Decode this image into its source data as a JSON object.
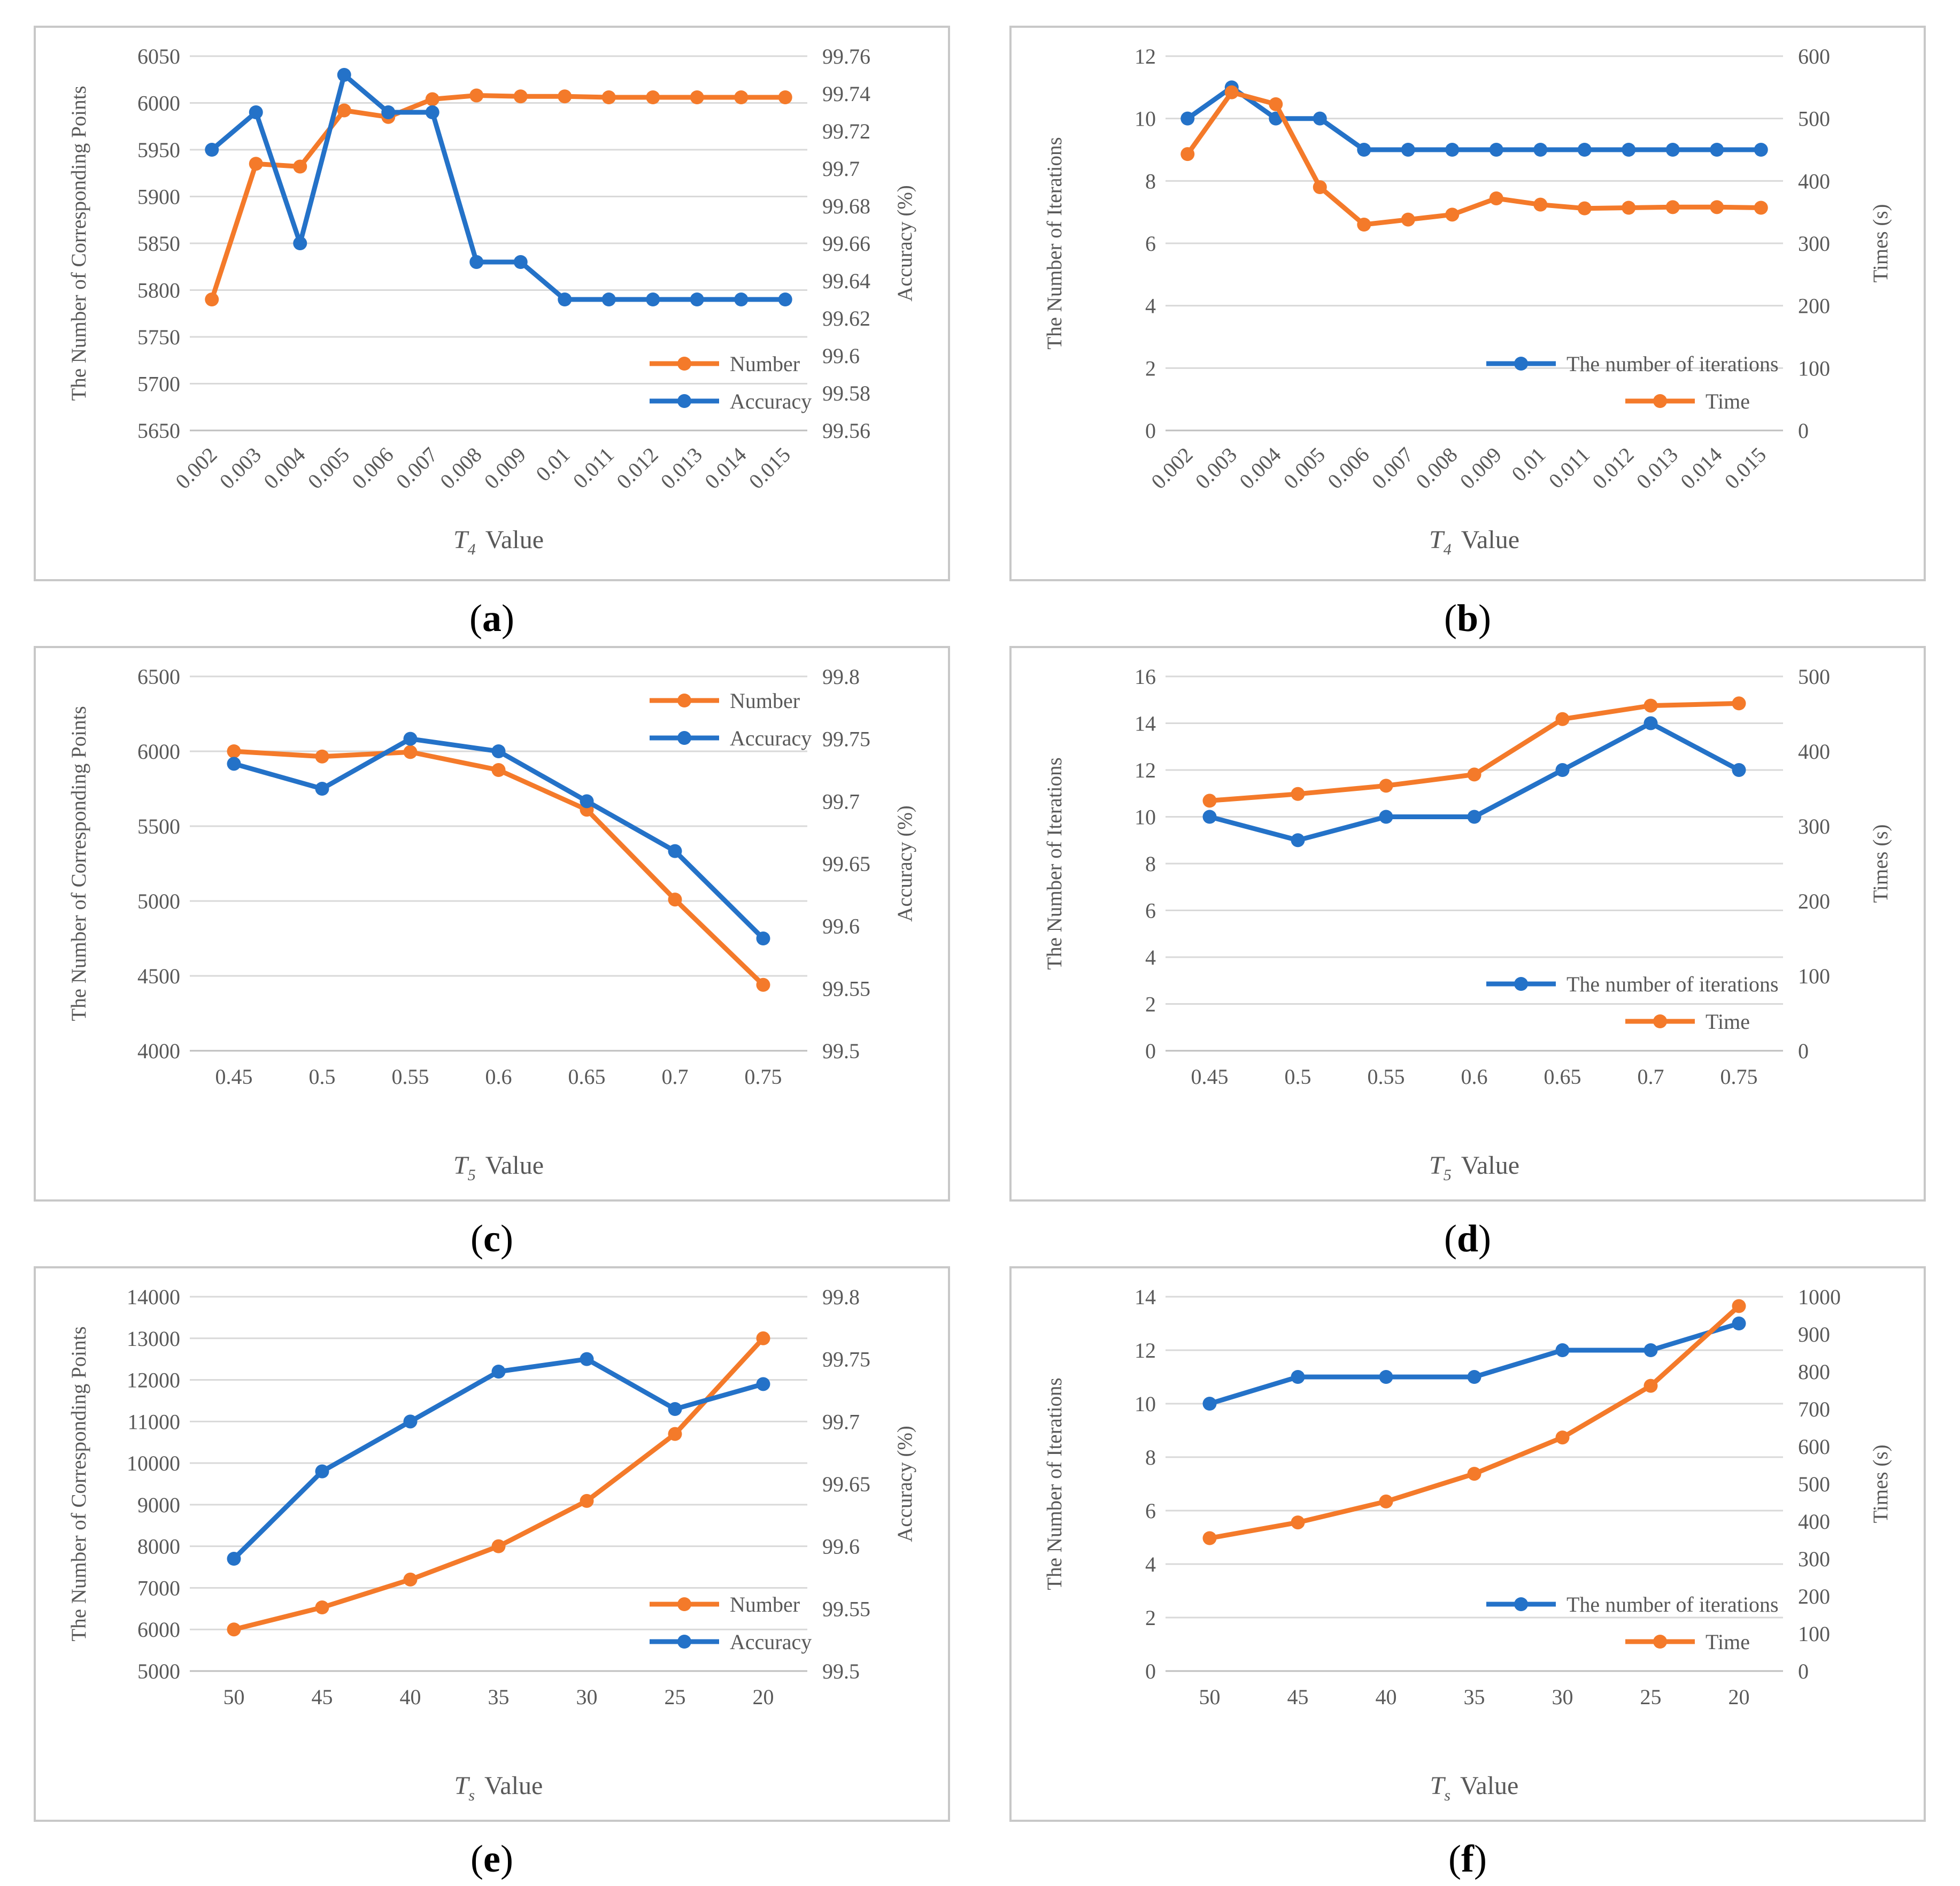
{
  "figure": {
    "panels": [
      {
        "id": "a",
        "caption_open": "(",
        "caption_letter": "a",
        "caption_close": ")"
      },
      {
        "id": "b",
        "caption_open": "(",
        "caption_letter": "b",
        "caption_close": ")"
      },
      {
        "id": "c",
        "caption_open": "(",
        "caption_letter": "c",
        "caption_close": ")"
      },
      {
        "id": "d",
        "caption_open": "(",
        "caption_letter": "d",
        "caption_close": ")"
      },
      {
        "id": "e",
        "caption_open": "(",
        "caption_letter": "e",
        "caption_close": ")"
      },
      {
        "id": "f",
        "caption_open": "(",
        "caption_letter": "f",
        "caption_close": ")"
      }
    ]
  },
  "colors": {
    "blue": "#2472C8",
    "orange": "#F47A2A",
    "grid": "#D9D9D9",
    "frame": "#C8C8C8",
    "text": "#595959"
  },
  "chart_data": [
    {
      "panel": "a",
      "type": "line",
      "categories": [
        "0.002",
        "0.003",
        "0.004",
        "0.005",
        "0.006",
        "0.007",
        "0.008",
        "0.009",
        "0.01",
        "0.011",
        "0.012",
        "0.013",
        "0.014",
        "0.015"
      ],
      "ylabel": "The Number of Corresponding Points",
      "y2label": "Accuracy (%)",
      "xlabel_symbol": "T",
      "xlabel_sub": "4",
      "xlabel_word": "Value",
      "ylim": [
        5650,
        6050
      ],
      "ystep": 50,
      "y2lim": [
        99.56,
        99.76
      ],
      "y2step": 0.02,
      "rotate_ticks": true,
      "legend_position": "bottom-right",
      "series": [
        {
          "name": "Number",
          "axis": "left",
          "color": "orange",
          "values": [
            5790,
            5935,
            5932,
            5992,
            5985,
            6004,
            6008,
            6007,
            6007,
            6006,
            6006,
            6006,
            6006,
            6006
          ]
        },
        {
          "name": "Accuracy",
          "axis": "right",
          "color": "blue",
          "values": [
            99.71,
            99.73,
            99.66,
            99.75,
            99.73,
            99.73,
            99.65,
            99.65,
            99.63,
            99.63,
            99.63,
            99.63,
            99.63,
            99.63
          ]
        }
      ]
    },
    {
      "panel": "b",
      "type": "line",
      "categories": [
        "0.002",
        "0.003",
        "0.004",
        "0.005",
        "0.006",
        "0.007",
        "0.008",
        "0.009",
        "0.01",
        "0.011",
        "0.012",
        "0.013",
        "0.014",
        "0.015"
      ],
      "ylabel": "The Number of Iterations",
      "y2label": "Times (s)",
      "xlabel_symbol": "T",
      "xlabel_sub": "4",
      "xlabel_word": "Value",
      "ylim": [
        0,
        12
      ],
      "ystep": 2,
      "y2lim": [
        0,
        600
      ],
      "y2step": 100,
      "rotate_ticks": true,
      "legend_position": "bottom-right",
      "series": [
        {
          "name": "The number of iterations",
          "axis": "left",
          "color": "blue",
          "values": [
            10,
            11,
            10,
            10,
            9,
            9,
            9,
            9,
            9,
            9,
            9,
            9,
            9,
            9
          ]
        },
        {
          "name": "Time",
          "axis": "right",
          "color": "orange",
          "values": [
            443,
            542,
            523,
            390,
            330,
            338,
            346,
            372,
            362,
            356,
            357,
            358,
            358,
            357
          ]
        }
      ]
    },
    {
      "panel": "c",
      "type": "line",
      "categories": [
        "0.45",
        "0.5",
        "0.55",
        "0.6",
        "0.65",
        "0.7",
        "0.75"
      ],
      "ylabel": "The Number of Corresponding Points",
      "y2label": "Accuracy (%)",
      "xlabel_symbol": "T",
      "xlabel_sub": "5",
      "xlabel_word": "Value",
      "ylim": [
        4000,
        6500
      ],
      "ystep": 500,
      "y2lim": [
        99.5,
        99.8
      ],
      "y2step": 0.05,
      "rotate_ticks": false,
      "legend_position": "top-right",
      "series": [
        {
          "name": "Number",
          "axis": "left",
          "color": "orange",
          "values": [
            6000,
            5965,
            5995,
            5875,
            5610,
            5010,
            4440
          ]
        },
        {
          "name": "Accuracy",
          "axis": "right",
          "color": "blue",
          "values": [
            99.73,
            99.71,
            99.75,
            99.74,
            99.7,
            99.66,
            99.59
          ]
        }
      ]
    },
    {
      "panel": "d",
      "type": "line",
      "categories": [
        "0.45",
        "0.5",
        "0.55",
        "0.6",
        "0.65",
        "0.7",
        "0.75"
      ],
      "ylabel": "The Number of Iterations",
      "y2label": "Times (s)",
      "xlabel_symbol": "T",
      "xlabel_sub": "5",
      "xlabel_word": "Value",
      "ylim": [
        0,
        16
      ],
      "ystep": 2,
      "y2lim": [
        0,
        500
      ],
      "y2step": 100,
      "rotate_ticks": false,
      "legend_position": "bottom-right",
      "series": [
        {
          "name": "The number of iterations",
          "axis": "left",
          "color": "blue",
          "values": [
            10,
            9,
            10,
            10,
            12,
            14,
            12
          ]
        },
        {
          "name": "Time",
          "axis": "right",
          "color": "orange",
          "values": [
            334,
            343,
            354,
            369,
            443,
            461,
            464
          ]
        }
      ]
    },
    {
      "panel": "e",
      "type": "line",
      "categories": [
        "50",
        "45",
        "40",
        "35",
        "30",
        "25",
        "20"
      ],
      "ylabel": "The Number of Corresponding Points",
      "y2label": "Accuracy (%)",
      "xlabel_symbol": "T",
      "xlabel_sub": "s",
      "xlabel_word": "Value",
      "ylim": [
        5000,
        14000
      ],
      "ystep": 1000,
      "y2lim": [
        99.5,
        99.8
      ],
      "y2step": 0.05,
      "rotate_ticks": false,
      "legend_position": "bottom-right",
      "series": [
        {
          "name": "Number",
          "axis": "left",
          "color": "orange",
          "values": [
            6000,
            6530,
            7200,
            8000,
            9090,
            10700,
            13000
          ]
        },
        {
          "name": "Accuracy",
          "axis": "right",
          "color": "blue",
          "values": [
            99.59,
            99.66,
            99.7,
            99.74,
            99.75,
            99.71,
            99.73
          ]
        }
      ]
    },
    {
      "panel": "f",
      "type": "line",
      "categories": [
        "50",
        "45",
        "40",
        "35",
        "30",
        "25",
        "20"
      ],
      "ylabel": "The Number of Iterations",
      "y2label": "Times (s)",
      "xlabel_symbol": "T",
      "xlabel_sub": "s",
      "xlabel_word": "Value",
      "ylim": [
        0,
        14
      ],
      "ystep": 2,
      "y2lim": [
        0,
        1000
      ],
      "y2step": 100,
      "rotate_ticks": false,
      "legend_position": "bottom-right",
      "series": [
        {
          "name": "The number of iterations",
          "axis": "left",
          "color": "blue",
          "values": [
            10,
            11,
            11,
            11,
            12,
            12,
            13
          ]
        },
        {
          "name": "Time",
          "axis": "right",
          "color": "orange",
          "values": [
            355,
            397,
            453,
            527,
            624,
            762,
            975
          ]
        }
      ]
    }
  ]
}
